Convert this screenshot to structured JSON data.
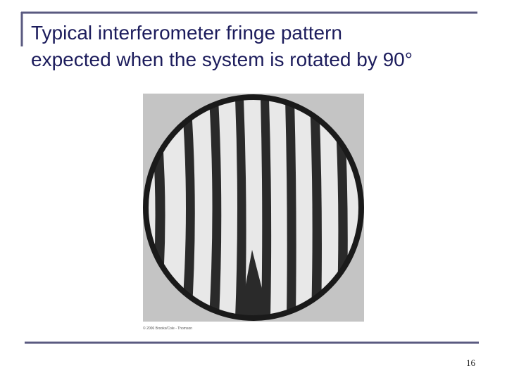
{
  "slide": {
    "title_lines": [
      "Typical interferometer fringe pattern",
      "expected when the system is rotated by 90°"
    ],
    "figure_credit": "© 2006 Brooks/Cole - Thomson",
    "page_number": "16"
  }
}
